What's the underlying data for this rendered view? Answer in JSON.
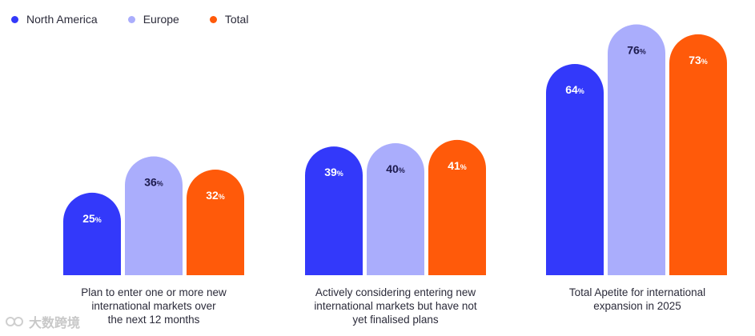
{
  "chart_data": {
    "type": "bar",
    "title": "",
    "xlabel": "",
    "ylabel": "",
    "ylim": [
      0,
      100
    ],
    "categories": [
      "Plan to enter one or more new\ninternational markets over\nthe next 12 months",
      "Actively considering entering new\ninternational markets but have not\nyet finalised plans",
      "Total Apetite for international\nexpansion in 2025"
    ],
    "series": [
      {
        "name": "North America",
        "values": [
          25,
          39,
          64
        ],
        "color": "#3339fa"
      },
      {
        "name": "Europe",
        "values": [
          36,
          40,
          76
        ],
        "color": "#aaadfc"
      },
      {
        "name": "Total",
        "values": [
          32,
          41,
          73
        ],
        "color": "#ff5a0a"
      }
    ],
    "value_suffix": "%",
    "legend_position": "top-left",
    "grid": false
  },
  "watermark": {
    "text": "大数跨境"
  }
}
